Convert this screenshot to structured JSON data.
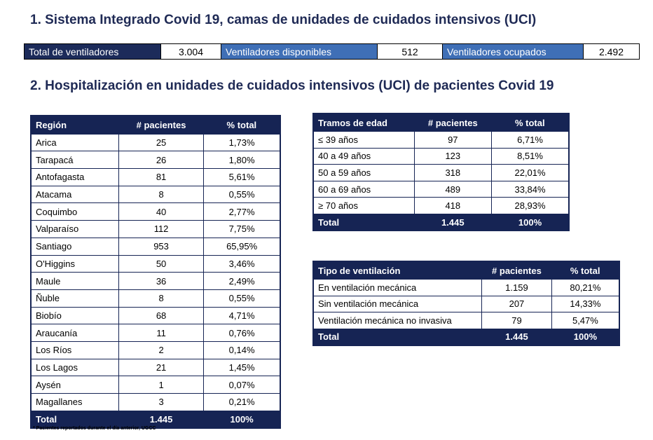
{
  "section1": {
    "title": "1. Sistema Integrado Covid 19, camas de unidades de cuidados intensivos (UCI)",
    "total_label": "Total de ventiladores",
    "total_value": "3.004",
    "available_label": "Ventiladores disponibles",
    "available_value": "512",
    "occupied_label": "Ventiladores ocupados",
    "occupied_value": "2.492"
  },
  "section2": {
    "title": "2. Hospitalización en unidades de cuidados intensivos (UCI) de pacientes Covid 19"
  },
  "region_table": {
    "headers": [
      "Región",
      "# pacientes",
      "% total"
    ],
    "rows": [
      [
        "Arica",
        "25",
        "1,73%"
      ],
      [
        "Tarapacá",
        "26",
        "1,80%"
      ],
      [
        "Antofagasta",
        "81",
        "5,61%"
      ],
      [
        "Atacama",
        "8",
        "0,55%"
      ],
      [
        "Coquimbo",
        "40",
        "2,77%"
      ],
      [
        "Valparaíso",
        "112",
        "7,75%"
      ],
      [
        "Santiago",
        "953",
        "65,95%"
      ],
      [
        "O'Higgins",
        "50",
        "3,46%"
      ],
      [
        "Maule",
        "36",
        "2,49%"
      ],
      [
        "Ñuble",
        "8",
        "0,55%"
      ],
      [
        "Biobío",
        "68",
        "4,71%"
      ],
      [
        "Araucanía",
        "11",
        "0,76%"
      ],
      [
        "Los Ríos",
        "2",
        "0,14%"
      ],
      [
        "Los Lagos",
        "21",
        "1,45%"
      ],
      [
        "Aysén",
        "1",
        "0,07%"
      ],
      [
        "Magallanes",
        "3",
        "0,21%"
      ]
    ],
    "total": [
      "Total",
      "1.445",
      "100%"
    ]
  },
  "age_table": {
    "headers": [
      "Tramos de edad",
      "# pacientes",
      "% total"
    ],
    "rows": [
      [
        "≤ 39 años",
        "97",
        "6,71%"
      ],
      [
        "40 a 49 años",
        "123",
        "8,51%"
      ],
      [
        "50 a 59 años",
        "318",
        "22,01%"
      ],
      [
        "60 a 69 años",
        "489",
        "33,84%"
      ],
      [
        "≥ 70 años",
        "418",
        "28,93%"
      ]
    ],
    "total": [
      "Total",
      "1.445",
      "100%"
    ]
  },
  "vent_table": {
    "headers": [
      "Tipo de ventilación",
      "# pacientes",
      "% total"
    ],
    "rows": [
      [
        "En ventilación mecánica",
        "1.159",
        "80,21%"
      ],
      [
        "Sin ventilación mecánica",
        "207",
        "14,33%"
      ],
      [
        "Ventilación mecánica no invasiva",
        "79",
        "5,47%"
      ]
    ],
    "total": [
      "Total",
      "1.445",
      "100%"
    ]
  },
  "footnote": "* Pacientes reportados durante el día anterior, UGCC"
}
